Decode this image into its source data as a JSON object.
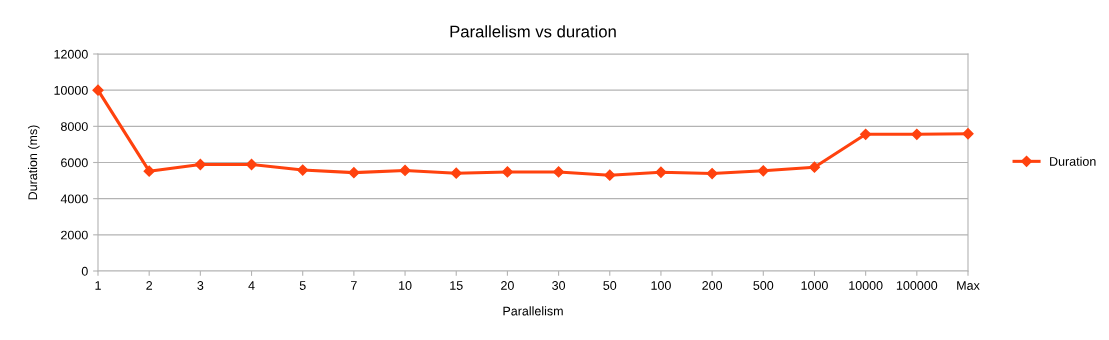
{
  "chart_data": {
    "type": "line",
    "title": "Parallelism vs duration",
    "xlabel": "Parallelism",
    "ylabel": "Duration (ms)",
    "categories": [
      "1",
      "2",
      "3",
      "4",
      "5",
      "7",
      "10",
      "15",
      "20",
      "30",
      "50",
      "100",
      "200",
      "500",
      "1000",
      "10000",
      "100000",
      "Max"
    ],
    "series": [
      {
        "name": "Duration",
        "color": "#ff420e",
        "values": [
          10000,
          5520,
          5890,
          5890,
          5580,
          5440,
          5560,
          5410,
          5480,
          5480,
          5300,
          5460,
          5390,
          5540,
          5740,
          7560,
          7560,
          7590
        ]
      }
    ],
    "ylim": [
      0,
      12000
    ],
    "yticks": [
      0,
      2000,
      4000,
      6000,
      8000,
      10000,
      12000
    ],
    "grid": "y",
    "legend": "right",
    "marker": "diamond",
    "line_style": "solid"
  }
}
